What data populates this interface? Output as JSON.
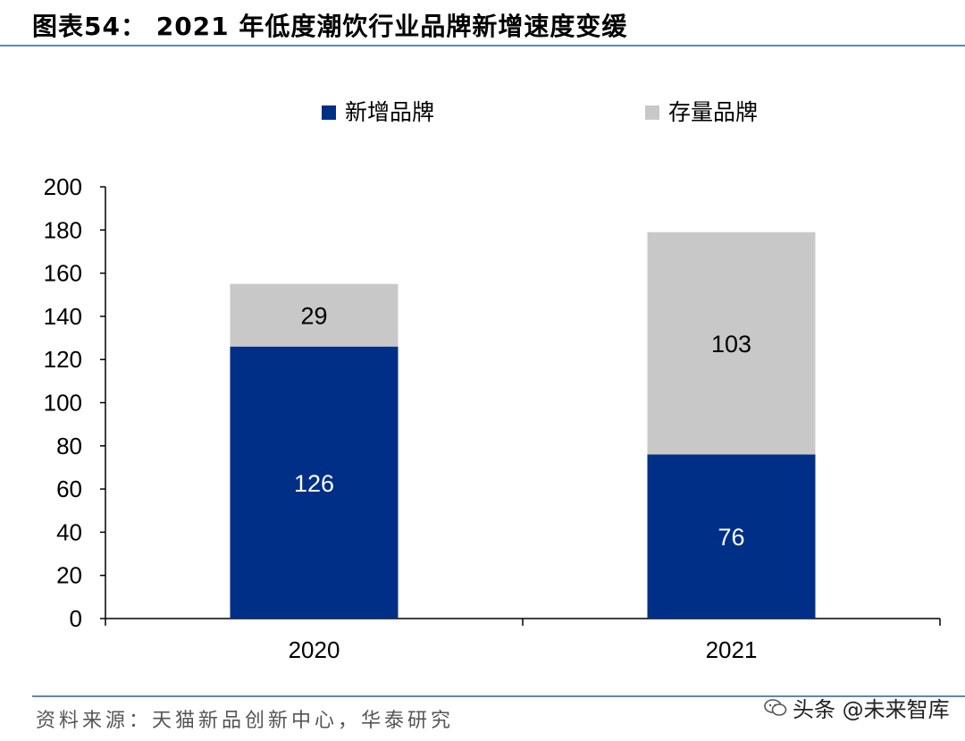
{
  "figure": {
    "title": "图表54： 2021 年低度潮饮行业品牌新增速度变缓",
    "source": "资料来源：天猫新品创新中心，华泰研究",
    "watermark": "头条 @未来智库"
  },
  "chart_data": {
    "type": "bar",
    "stacked": true,
    "title": "",
    "xlabel": "",
    "ylabel": "",
    "categories": [
      "2020",
      "2021"
    ],
    "series": [
      {
        "name": "新增品牌",
        "values": [
          126,
          76
        ],
        "color": "#002f87"
      },
      {
        "name": "存量品牌",
        "values": [
          29,
          103
        ],
        "color": "#c8c8c8"
      }
    ],
    "ylim": [
      0,
      200
    ],
    "yticks": [
      "0",
      "20",
      "40",
      "60",
      "80",
      "100",
      "120",
      "140",
      "160",
      "180",
      "200"
    ],
    "legend_position": "top",
    "grid": false,
    "data_label_colors": [
      "#ffffff",
      "#000000"
    ]
  }
}
